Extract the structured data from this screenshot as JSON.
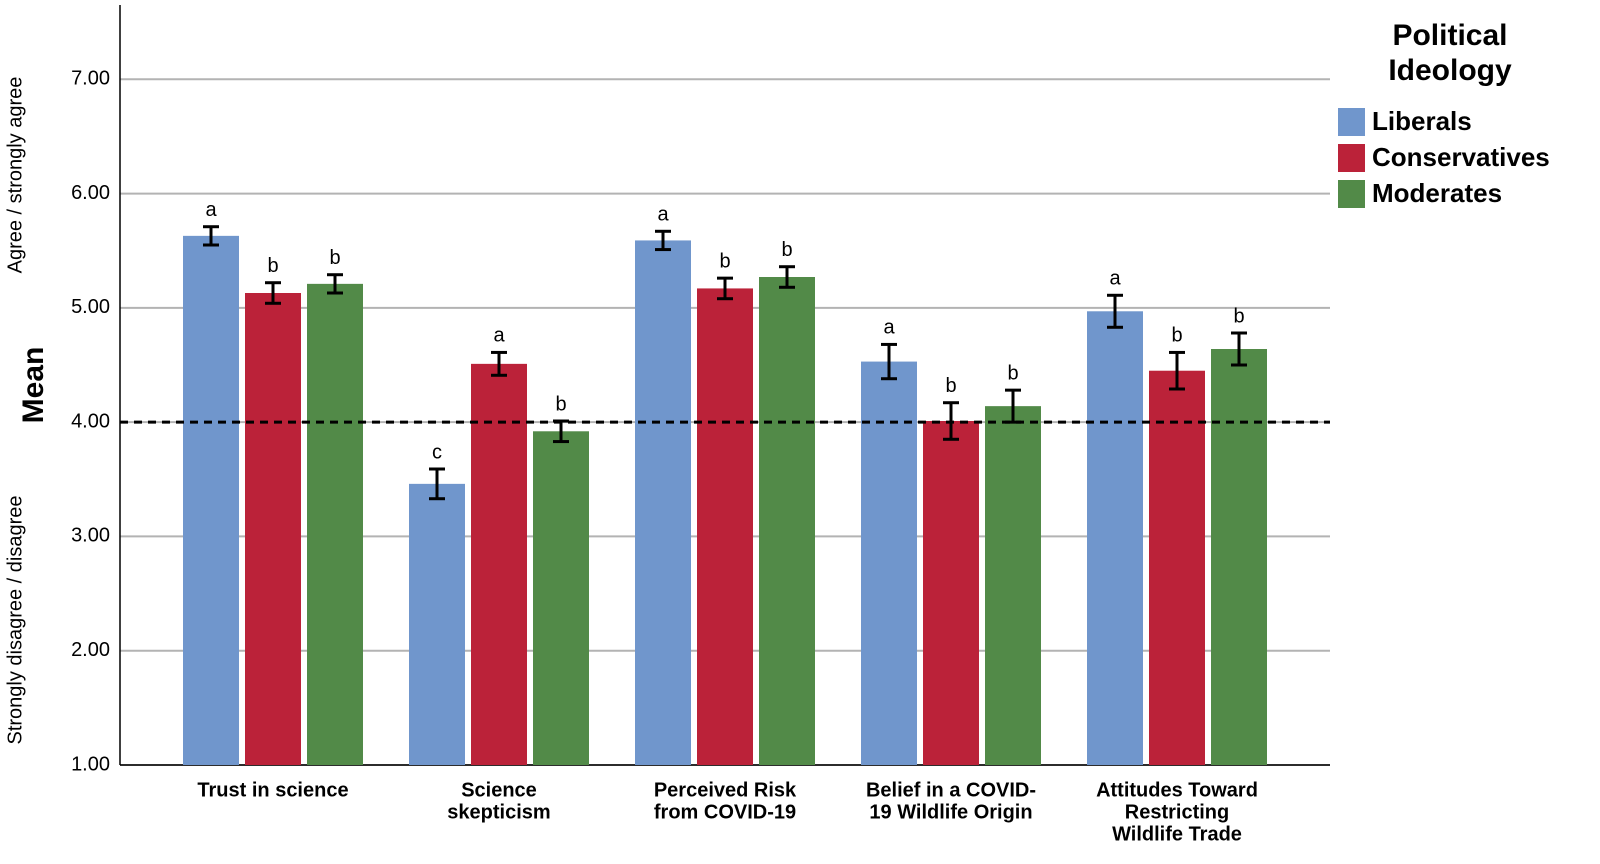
{
  "chart_data": {
    "type": "bar",
    "y_label": "Mean",
    "y_upper_label": "Agree / strongly agree",
    "y_lower_label": "Strongly disagree / disagree",
    "legend_title": [
      "Political",
      "Ideology"
    ],
    "categories": [
      [
        "Trust in science"
      ],
      [
        "Science",
        "skepticism"
      ],
      [
        "Perceived Risk",
        "from COVID-19"
      ],
      [
        "Belief in a COVID-",
        "19 Wildlife Origin"
      ],
      [
        "Attitudes Toward",
        "Restricting",
        "Wildlife Trade"
      ]
    ],
    "series": [
      {
        "name": "Liberals",
        "color": "#7096cc",
        "values": [
          5.63,
          3.46,
          5.59,
          4.53,
          4.97
        ],
        "errors": [
          0.08,
          0.13,
          0.08,
          0.15,
          0.14
        ],
        "labels": [
          "a",
          "c",
          "a",
          "a",
          "a"
        ]
      },
      {
        "name": "Conservatives",
        "color": "#bb2239",
        "values": [
          5.13,
          4.51,
          5.17,
          4.01,
          4.45
        ],
        "errors": [
          0.09,
          0.1,
          0.09,
          0.16,
          0.16
        ],
        "labels": [
          "b",
          "a",
          "b",
          "b",
          "b"
        ]
      },
      {
        "name": "Moderates",
        "color": "#528a48",
        "values": [
          5.21,
          3.92,
          5.27,
          4.14,
          4.64
        ],
        "errors": [
          0.08,
          0.09,
          0.09,
          0.14,
          0.14
        ],
        "labels": [
          "b",
          "b",
          "b",
          "b",
          "b"
        ]
      }
    ],
    "ylim": [
      1,
      7.65
    ],
    "yticks": [
      {
        "value": 1,
        "label": "1.00"
      },
      {
        "value": 2,
        "label": "2.00"
      },
      {
        "value": 3,
        "label": "3.00"
      },
      {
        "value": 4,
        "label": "4.00"
      },
      {
        "value": 5,
        "label": "5.00"
      },
      {
        "value": 6,
        "label": "6.00"
      },
      {
        "value": 7,
        "label": "7.00"
      }
    ],
    "reference_line": 4,
    "grid": true,
    "legend_position": "top-right"
  }
}
